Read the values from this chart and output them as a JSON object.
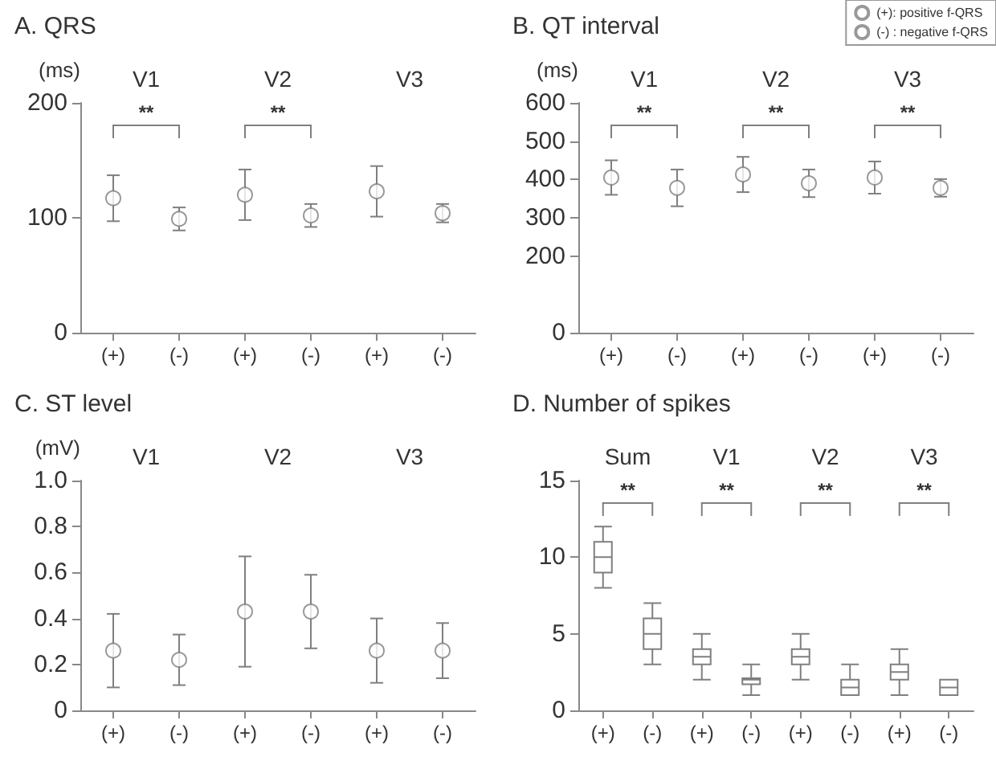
{
  "chart_data": [
    {
      "type": "scatter",
      "title": "A. QRS",
      "ylabel": "(ms)",
      "categories": [
        "(+)",
        "(-)",
        "(+)",
        "(-)",
        "(+)",
        "(-)"
      ],
      "series": [
        {
          "color": "#7f7f7f",
          "values": [
            117,
            null,
            120,
            null,
            123,
            null
          ],
          "errors": [
            20,
            null,
            22,
            null,
            22,
            null
          ]
        },
        {
          "color": "#7f7f7f",
          "values": [
            null,
            99,
            null,
            102,
            null,
            104
          ],
          "errors": [
            null,
            10,
            null,
            10,
            null,
            8
          ]
        }
      ],
      "ylim": [
        0,
        200
      ],
      "yticks": [
        0,
        100,
        200
      ],
      "marker": "circle",
      "grid": false,
      "legend": false,
      "annotations": [
        "V1",
        "V2",
        "V3",
        "**",
        "**"
      ]
    },
    {
      "type": "scatter",
      "title": "B. QT interval",
      "ylabel": "(ms)",
      "categories": [
        "(+)",
        "(-)",
        "(+)",
        "(-)",
        "(+)",
        "(-)"
      ],
      "series": [
        {
          "name": "(+): positive f-QRS",
          "color": "#7f7f7f",
          "values": [
            405,
            null,
            413,
            null,
            405,
            null
          ],
          "errors": [
            45,
            null,
            46,
            null,
            42,
            null
          ]
        },
        {
          "name": "(-) : negative f-QRS",
          "color": "#7f7f7f",
          "values": [
            null,
            378,
            null,
            390,
            null,
            378
          ],
          "errors": [
            null,
            48,
            null,
            36,
            null,
            23
          ]
        }
      ],
      "ylim": [
        0,
        600
      ],
      "yticks": [
        0,
        200,
        300,
        400,
        500,
        600
      ],
      "marker": "circle",
      "grid": false,
      "legend": "top right",
      "annotations": [
        "V1",
        "V2",
        "V3",
        "**",
        "**",
        "**"
      ]
    },
    {
      "type": "scatter",
      "title": "C. ST level",
      "ylabel": "(mV)",
      "categories": [
        "(+)",
        "(-)",
        "(+)",
        "(-)",
        "(+)",
        "(-)"
      ],
      "series": [
        {
          "color": "#7f7f7f",
          "values": [
            0.26,
            null,
            0.43,
            null,
            0.26,
            null
          ],
          "errors": [
            0.16,
            null,
            0.24,
            null,
            0.14,
            null
          ]
        },
        {
          "color": "#7f7f7f",
          "values": [
            null,
            0.22,
            null,
            0.43,
            null,
            0.26
          ],
          "errors": [
            null,
            0.11,
            null,
            0.16,
            null,
            0.12
          ]
        }
      ],
      "ylim": [
        0,
        1
      ],
      "yticks": [
        0,
        {
          "value": 0.2,
          "label": "0.2"
        },
        {
          "value": 0.4,
          "label": "0.4"
        },
        {
          "value": 0.6,
          "label": "0.6"
        },
        {
          "value": 0.8,
          "label": "0.8"
        },
        {
          "value": 1,
          "label": "1.0"
        }
      ],
      "marker": "circle",
      "grid": false,
      "legend": false,
      "annotations": [
        "V1",
        "V2",
        "V3"
      ]
    },
    {
      "type": "box",
      "title": "D. Number of spikes",
      "categories": [
        "(+)",
        "(-)",
        "(+)",
        "(-)",
        "(+)",
        "(-)",
        "(+)",
        "(-)"
      ],
      "series": [
        {
          "color": "#7f7f7f",
          "boxes": [
            {
              "low": 8,
              "q1": 9,
              "median": 10,
              "q3": 11,
              "high": 12
            },
            {
              "low": 3,
              "q1": 4,
              "median": 5,
              "q3": 6,
              "high": 7
            },
            {
              "low": 2,
              "q1": 3,
              "median": 3.5,
              "q3": 4,
              "high": 5
            },
            {
              "low": 1,
              "q1": 1.7,
              "median": 2,
              "q3": 2.1,
              "high": 3
            },
            {
              "low": 2,
              "q1": 3,
              "median": 3.5,
              "q3": 4,
              "high": 5
            },
            {
              "low": 1,
              "q1": 1,
              "median": 1.5,
              "q3": 2,
              "high": 3
            },
            {
              "low": 1,
              "q1": 2,
              "median": 2.5,
              "q3": 3,
              "high": 4
            },
            {
              "low": 1,
              "q1": 1,
              "median": 1.5,
              "q3": 2,
              "high": 2
            }
          ]
        }
      ],
      "ylim": [
        0,
        15
      ],
      "yticks": [
        0,
        5,
        10,
        15
      ],
      "grid": false,
      "legend": false,
      "annotations": [
        "Sum",
        "V1",
        "V2",
        "V3",
        "**",
        "**",
        "**",
        "**"
      ]
    }
  ]
}
